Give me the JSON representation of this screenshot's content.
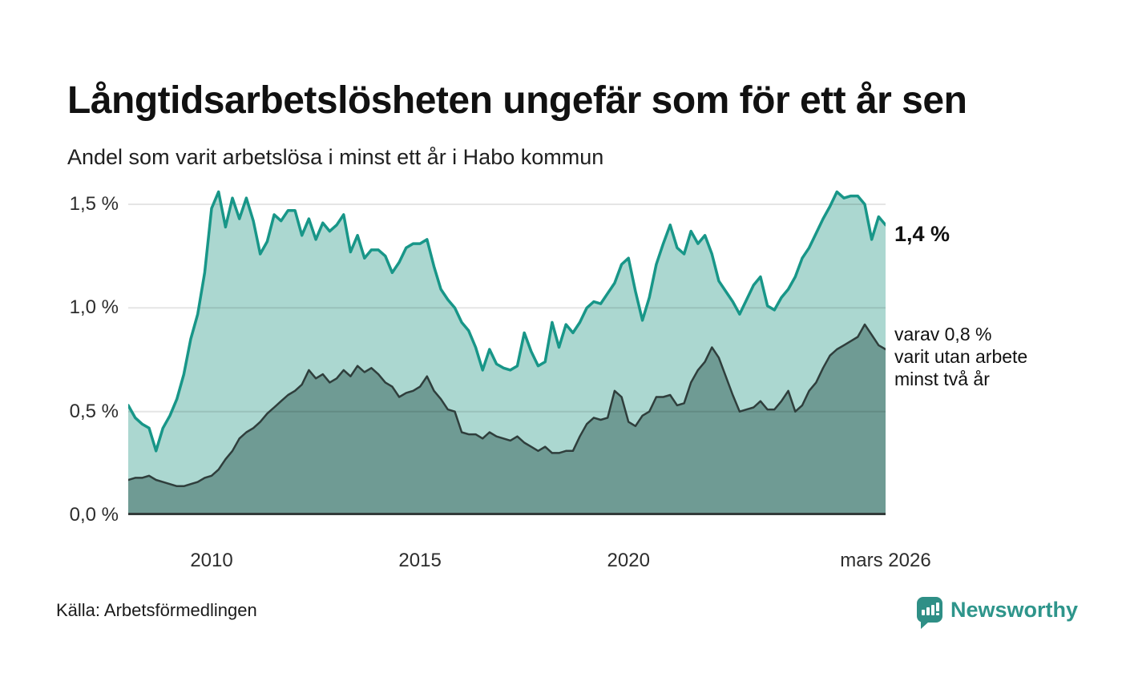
{
  "header": {
    "title": "Långtidsarbetslösheten ungefär som för ett år sen",
    "subtitle": "Andel som varit arbetslösa i minst ett år i Habo kommun"
  },
  "annotations": {
    "current_value": "1,4 %",
    "secondary": [
      "varav 0,8 %",
      "varit utan arbete",
      "minst två år"
    ]
  },
  "footer": {
    "source": "Källa: Arbetsförmedlingen",
    "brand": "Newsworthy",
    "brand_icon": "bar-chart-speech-bubble-icon"
  },
  "colors": {
    "primary_line": "#189688",
    "primary_fill": "#abd7d0",
    "secondary_line": "#2f3e3c",
    "secondary_fill": "#6f9b94",
    "baseline": "#333b3a",
    "gridline": "rgba(0,0,0,0.10)",
    "brand_teal": "#2f8f86"
  },
  "chart_data": {
    "type": "area",
    "title": "Långtidsarbetslösheten ungefär som för ett år sen",
    "subtitle": "Andel som varit arbetslösa i minst ett år i Habo kommun",
    "xlabel": "",
    "ylabel": "",
    "grid": true,
    "legend": "none",
    "x_unit": "years (monthly series, points every 2 months)",
    "xlim": [
      2008.0,
      2026.1667
    ],
    "ylim": [
      0,
      1.5965
    ],
    "yticks": [
      {
        "label": "0,0 %",
        "value": 0.0
      },
      {
        "label": "0,5 %",
        "value": 0.5
      },
      {
        "label": "1,0 %",
        "value": 1.0
      },
      {
        "label": "1,5 %",
        "value": 1.5
      }
    ],
    "xticks": [
      {
        "label": "2010",
        "value": 2010
      },
      {
        "label": "2015",
        "value": 2015
      },
      {
        "label": "2020",
        "value": 2020
      },
      {
        "label": "mars 2026",
        "value": 2026.1667
      }
    ],
    "series": [
      {
        "name": "Arbetslösa minst ett år",
        "end_label": "1,4 %",
        "end_value": 1.4,
        "line_color": "#189688",
        "fill_color": "#abd7d0",
        "line_width": 3.5,
        "values": [
          0.53,
          0.47,
          0.44,
          0.42,
          0.31,
          0.42,
          0.48,
          0.56,
          0.68,
          0.85,
          0.97,
          1.17,
          1.48,
          1.56,
          1.39,
          1.53,
          1.43,
          1.53,
          1.42,
          1.26,
          1.32,
          1.45,
          1.42,
          1.47,
          1.47,
          1.35,
          1.43,
          1.33,
          1.41,
          1.37,
          1.4,
          1.45,
          1.27,
          1.35,
          1.24,
          1.28,
          1.28,
          1.25,
          1.17,
          1.22,
          1.29,
          1.31,
          1.31,
          1.33,
          1.2,
          1.09,
          1.04,
          1.0,
          0.93,
          0.89,
          0.81,
          0.7,
          0.8,
          0.73,
          0.71,
          0.7,
          0.72,
          0.88,
          0.79,
          0.72,
          0.74,
          0.93,
          0.81,
          0.92,
          0.88,
          0.93,
          1.0,
          1.03,
          1.02,
          1.07,
          1.12,
          1.21,
          1.24,
          1.08,
          0.94,
          1.05,
          1.21,
          1.31,
          1.4,
          1.29,
          1.26,
          1.37,
          1.31,
          1.35,
          1.26,
          1.13,
          1.08,
          1.03,
          0.97,
          1.04,
          1.11,
          1.15,
          1.01,
          0.99,
          1.05,
          1.09,
          1.15,
          1.24,
          1.29,
          1.36,
          1.43,
          1.49,
          1.56,
          1.53,
          1.54,
          1.54,
          1.5,
          1.33,
          1.44,
          1.4
        ]
      },
      {
        "name": "varav utan arbete minst två år",
        "end_label": "varav 0,8 % varit utan arbete minst två år",
        "end_value": 0.8,
        "line_color": "#2f3e3c",
        "fill_color": "#6f9b94",
        "line_width": 2.5,
        "values": [
          0.17,
          0.18,
          0.18,
          0.19,
          0.17,
          0.16,
          0.15,
          0.14,
          0.14,
          0.15,
          0.16,
          0.18,
          0.19,
          0.22,
          0.27,
          0.31,
          0.37,
          0.4,
          0.42,
          0.45,
          0.49,
          0.52,
          0.55,
          0.58,
          0.6,
          0.63,
          0.7,
          0.66,
          0.68,
          0.64,
          0.66,
          0.7,
          0.67,
          0.72,
          0.69,
          0.71,
          0.68,
          0.64,
          0.62,
          0.57,
          0.59,
          0.6,
          0.62,
          0.67,
          0.6,
          0.56,
          0.51,
          0.5,
          0.4,
          0.39,
          0.39,
          0.37,
          0.4,
          0.38,
          0.37,
          0.36,
          0.38,
          0.35,
          0.33,
          0.31,
          0.33,
          0.3,
          0.3,
          0.31,
          0.31,
          0.38,
          0.44,
          0.47,
          0.46,
          0.47,
          0.6,
          0.57,
          0.45,
          0.43,
          0.48,
          0.5,
          0.57,
          0.57,
          0.58,
          0.53,
          0.54,
          0.64,
          0.7,
          0.74,
          0.81,
          0.76,
          0.67,
          0.58,
          0.5,
          0.51,
          0.52,
          0.55,
          0.51,
          0.51,
          0.55,
          0.6,
          0.5,
          0.53,
          0.6,
          0.64,
          0.71,
          0.77,
          0.8,
          0.82,
          0.84,
          0.86,
          0.92,
          0.87,
          0.82,
          0.8
        ]
      }
    ]
  }
}
